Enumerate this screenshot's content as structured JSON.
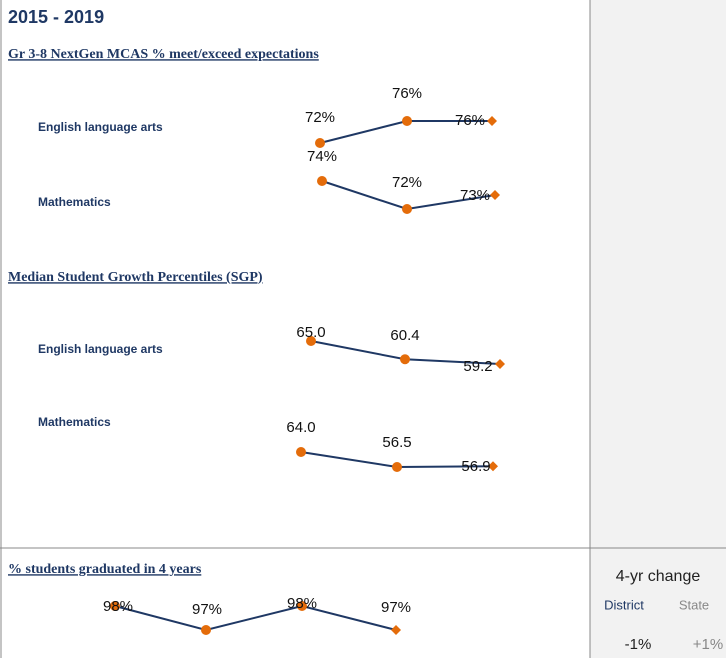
{
  "header": {
    "title": "2015 - 2019"
  },
  "sections": [
    {
      "title": "Gr 3-8 NextGen MCAS  % meet/exceed expectations",
      "rows": [
        {
          "label": "English language arts",
          "values": [
            72,
            76,
            76
          ],
          "value_labels": [
            "72%",
            "76%",
            "76%"
          ]
        },
        {
          "label": "Mathematics",
          "values": [
            74,
            72,
            73
          ],
          "value_labels": [
            "74%",
            "72%",
            "73%"
          ]
        }
      ]
    },
    {
      "title": "Median Student Growth Percentiles (SGP)",
      "rows": [
        {
          "label": "English language arts",
          "values": [
            65.0,
            60.4,
            59.2
          ],
          "value_labels": [
            "65.0",
            "60.4",
            "59.2"
          ]
        },
        {
          "label": "Mathematics",
          "values": [
            64.0,
            56.5,
            56.9
          ],
          "value_labels": [
            "64.0",
            "56.5",
            "56.9"
          ]
        }
      ]
    },
    {
      "title": "% students graduated in 4 years",
      "rows": [
        {
          "values": [
            98,
            97,
            98,
            97
          ],
          "value_labels": [
            "98%",
            "97%",
            "98%",
            "97%"
          ]
        }
      ]
    }
  ],
  "change_panel": {
    "title": "4-yr change",
    "district_label": "District",
    "state_label": "State",
    "district_value": "-1%",
    "state_value": "+1%"
  }
}
